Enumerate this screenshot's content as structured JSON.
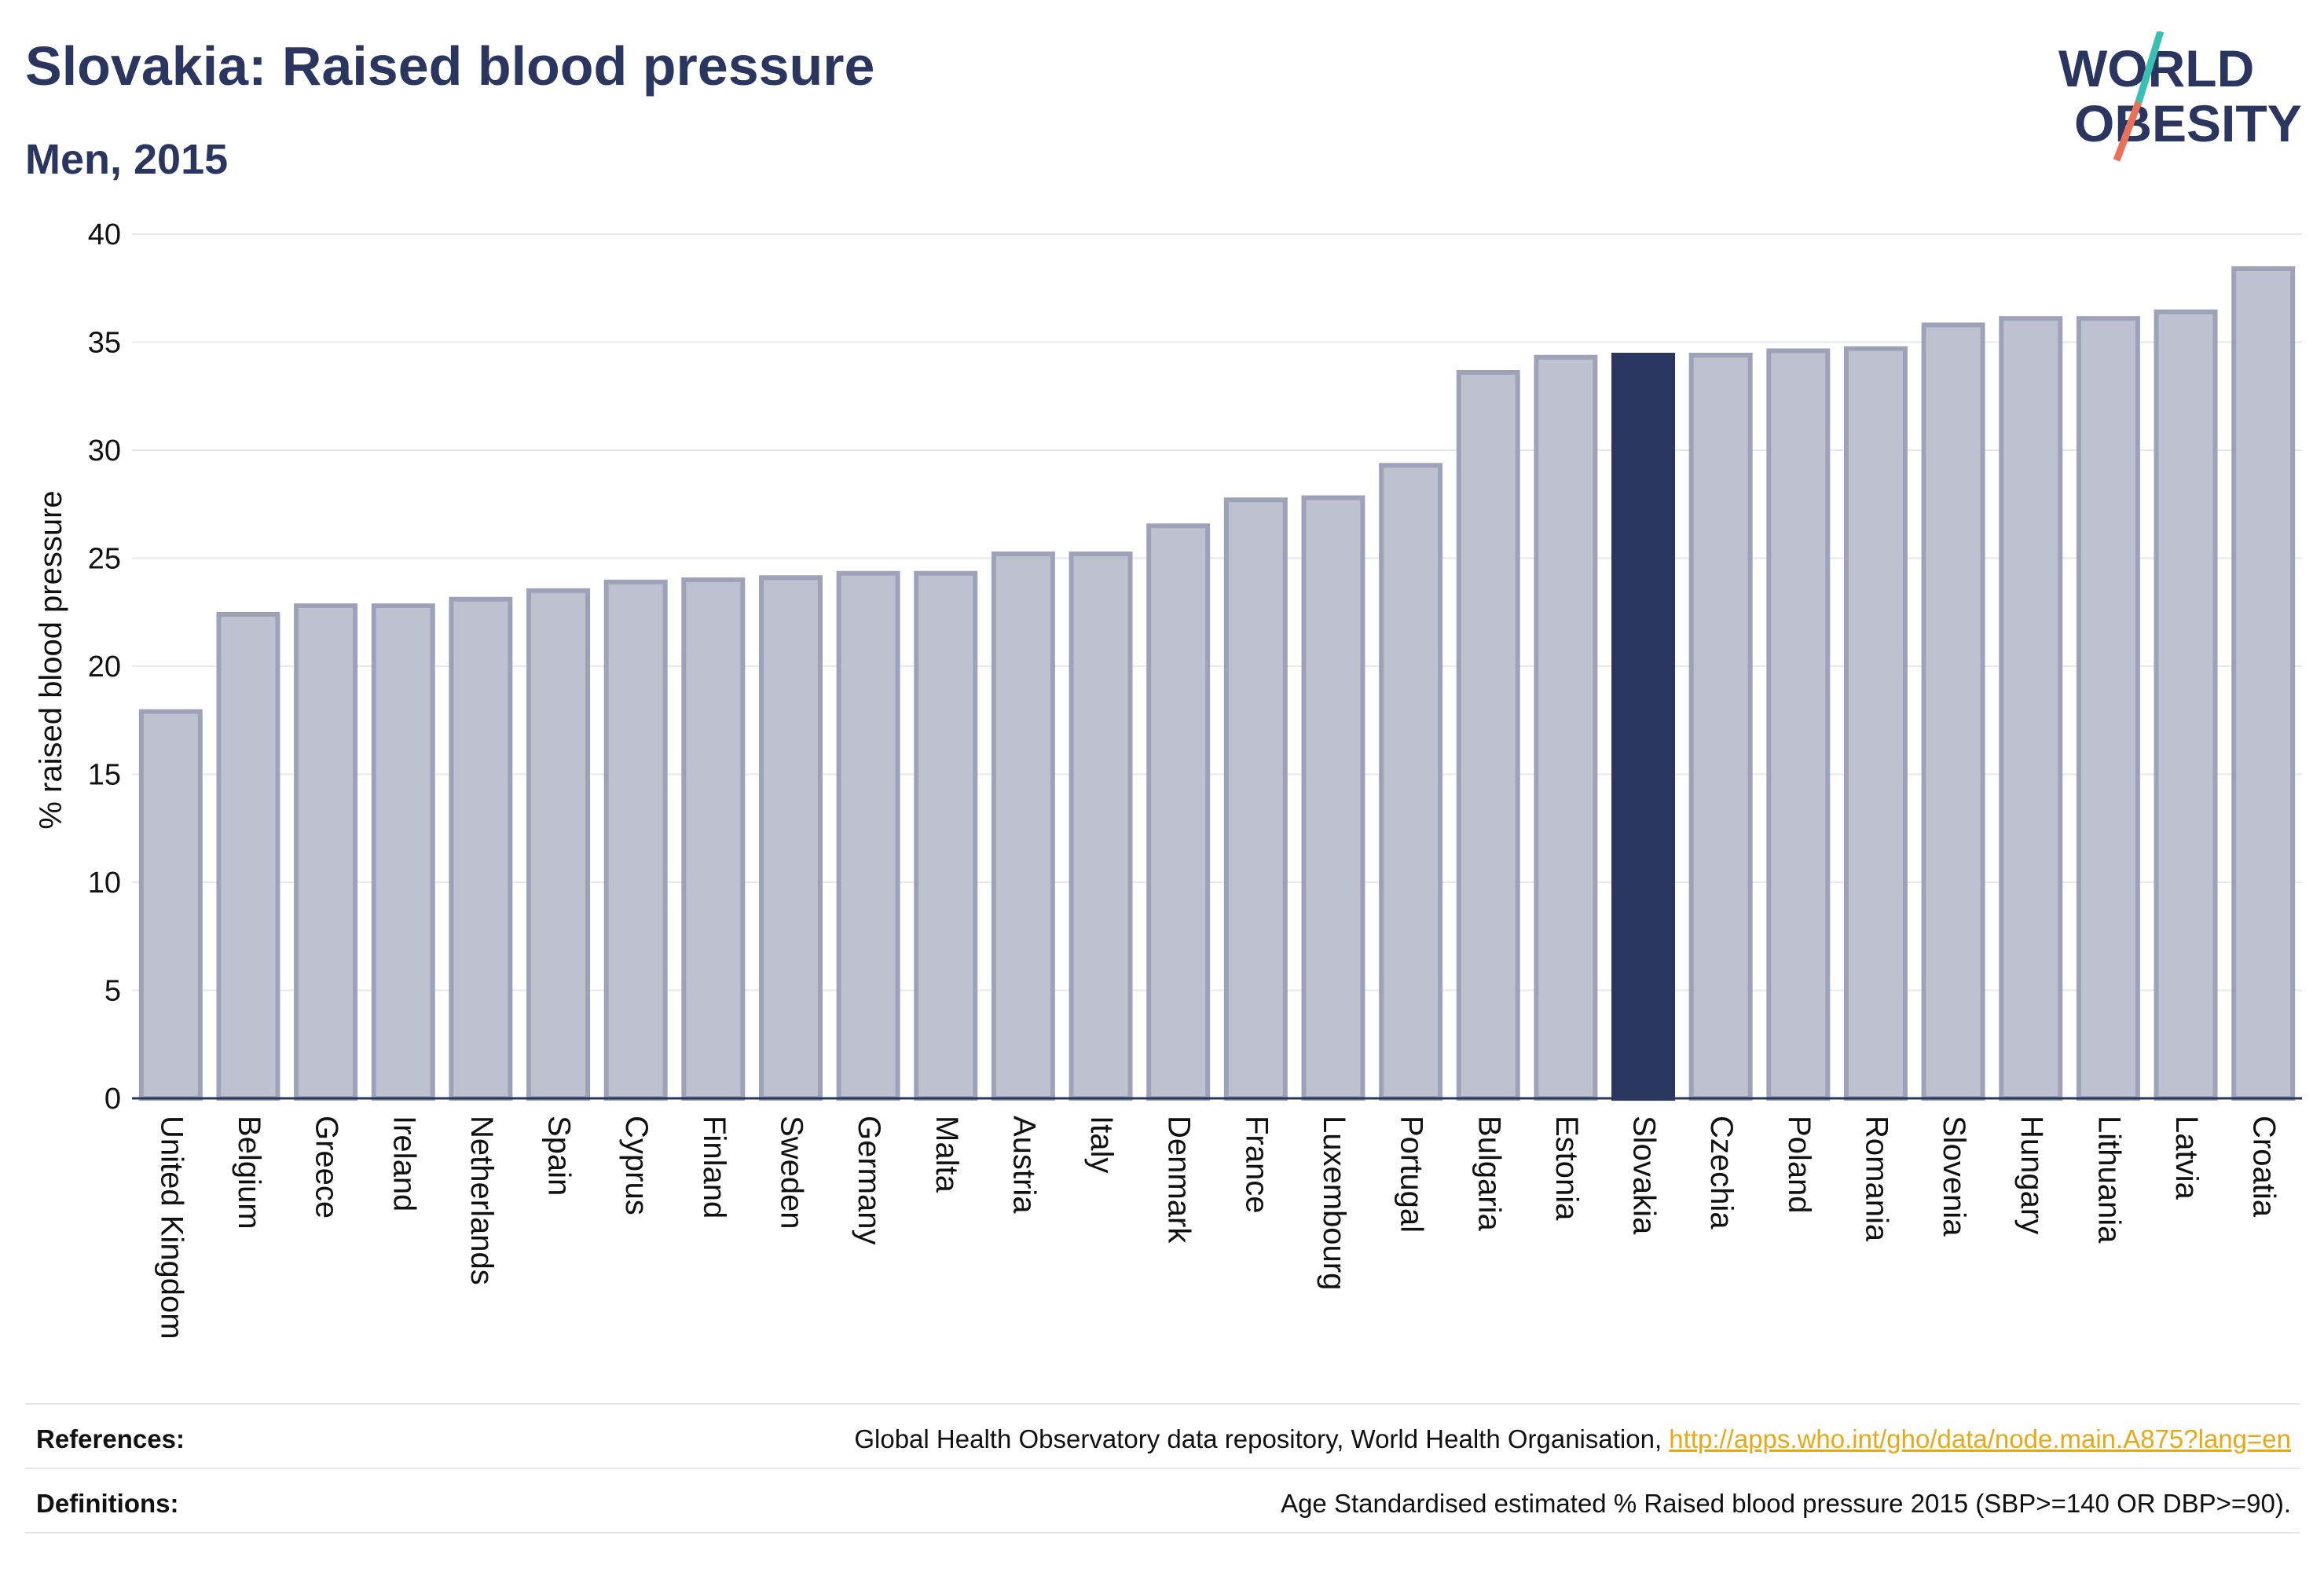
{
  "header": {
    "title": "Slovakia: Raised blood pressure",
    "subtitle": "Men, 2015"
  },
  "logo": {
    "line1": "WORLD",
    "line2": "OBESITY"
  },
  "colors": {
    "bar_fill": "#bec1cf",
    "bar_stroke": "#9da2b8",
    "highlight": "#2a3560",
    "grid": "#e6e7ec",
    "axis": "#2a3560",
    "accent_teal": "#3bbfb5",
    "accent_coral": "#e8715a"
  },
  "chart_data": {
    "type": "bar",
    "title": "Slovakia: Raised blood pressure",
    "subtitle": "Men, 2015",
    "xlabel": "",
    "ylabel": "% raised blood pressure",
    "ylim": [
      0,
      40
    ],
    "yticks": [
      0,
      5,
      10,
      15,
      20,
      25,
      30,
      35,
      40
    ],
    "grid": true,
    "highlight": "Slovakia",
    "categories": [
      "United Kingdom",
      "Belgium",
      "Greece",
      "Ireland",
      "Netherlands",
      "Spain",
      "Cyprus",
      "Finland",
      "Sweden",
      "Germany",
      "Malta",
      "Austria",
      "Italy",
      "Denmark",
      "France",
      "Luxembourg",
      "Portugal",
      "Bulgaria",
      "Estonia",
      "Slovakia",
      "Czechia",
      "Poland",
      "Romania",
      "Slovenia",
      "Hungary",
      "Lithuania",
      "Latvia",
      "Croatia"
    ],
    "values": [
      17.9,
      22.4,
      22.8,
      22.8,
      23.1,
      23.5,
      23.9,
      24.0,
      24.1,
      24.3,
      24.3,
      25.2,
      25.2,
      26.5,
      27.7,
      27.8,
      29.3,
      33.6,
      34.3,
      34.4,
      34.4,
      34.6,
      34.7,
      35.8,
      36.1,
      36.1,
      36.4,
      38.4
    ]
  },
  "footer": {
    "references_label": "References:",
    "references_text": "Global Health Observatory data repository, World Health Organisation, ",
    "references_link": "http://apps.who.int/gho/data/node.main.A875?lang=en",
    "definitions_label": "Definitions:",
    "definitions_text": "Age Standardised estimated % Raised blood pressure 2015 (SBP>=140 OR DBP>=90)."
  }
}
